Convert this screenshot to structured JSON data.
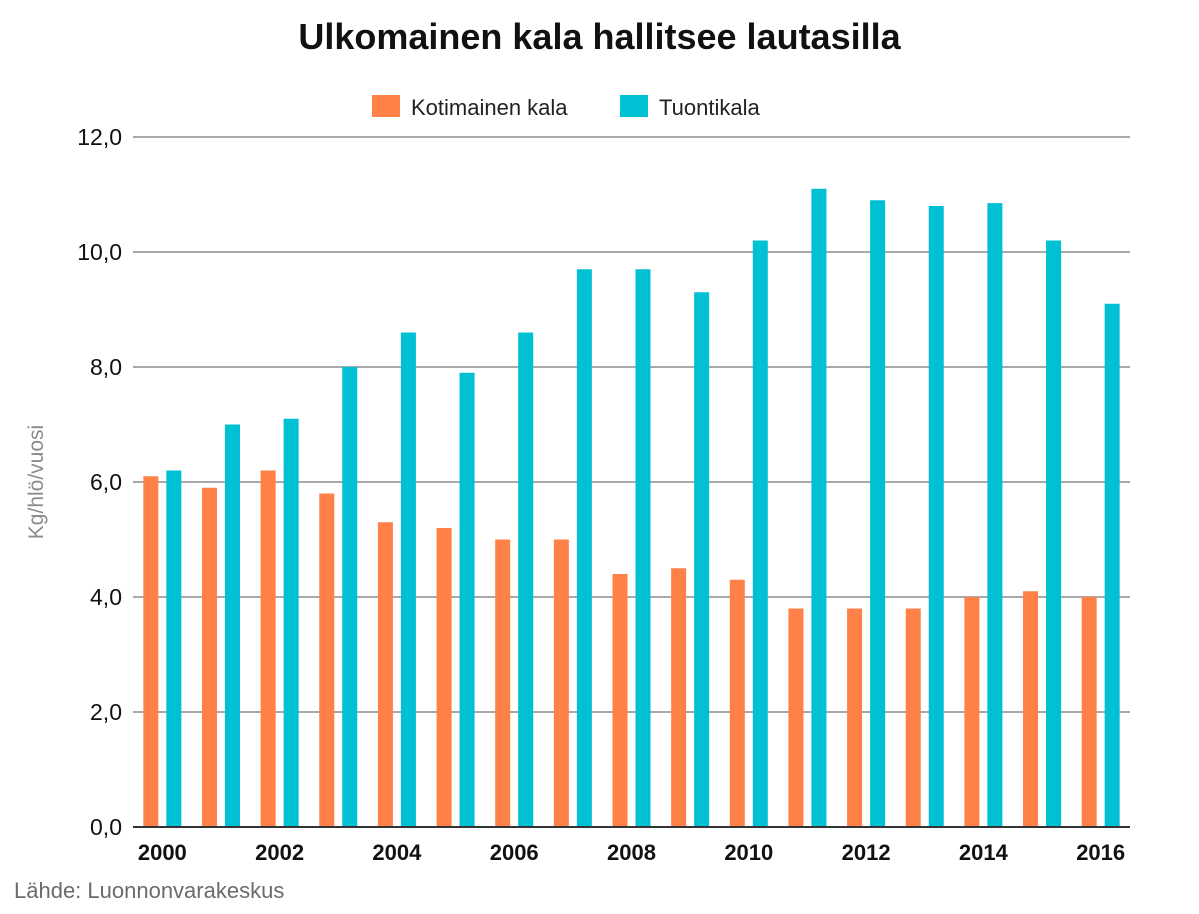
{
  "chart_data": {
    "type": "bar",
    "title": "Ulkomainen kala hallitsee lautasilla",
    "ylabel": "Kg/hlö/vuosi",
    "xlabel": "",
    "ylim": [
      0,
      12
    ],
    "yticks": [
      "0,0",
      "2,0",
      "4,0",
      "6,0",
      "8,0",
      "10,0",
      "12,0"
    ],
    "categories": [
      "2000",
      "2001",
      "2002",
      "2003",
      "2004",
      "2005",
      "2006",
      "2007",
      "2008",
      "2009",
      "2010",
      "2011",
      "2012",
      "2013",
      "2014",
      "2015",
      "2016"
    ],
    "xtick_labels": [
      "2000",
      "2002",
      "2004",
      "2006",
      "2008",
      "2010",
      "2012",
      "2014",
      "2016"
    ],
    "series": [
      {
        "name": "Kotimainen kala",
        "color": "#ff8147",
        "values": [
          6.1,
          5.9,
          6.2,
          5.8,
          5.3,
          5.2,
          5.0,
          5.0,
          4.4,
          4.5,
          4.3,
          3.8,
          3.8,
          3.8,
          4.0,
          4.1,
          4.0
        ]
      },
      {
        "name": "Tuontikala",
        "color": "#00c0d4",
        "values": [
          6.2,
          7.0,
          7.1,
          8.0,
          8.6,
          7.9,
          8.6,
          9.7,
          9.7,
          9.3,
          10.2,
          11.1,
          10.9,
          10.8,
          10.85,
          10.2,
          9.1
        ]
      }
    ],
    "legend_position": "top-center",
    "grid": true,
    "source": "Lähde: Luonnonvarakeskus"
  }
}
